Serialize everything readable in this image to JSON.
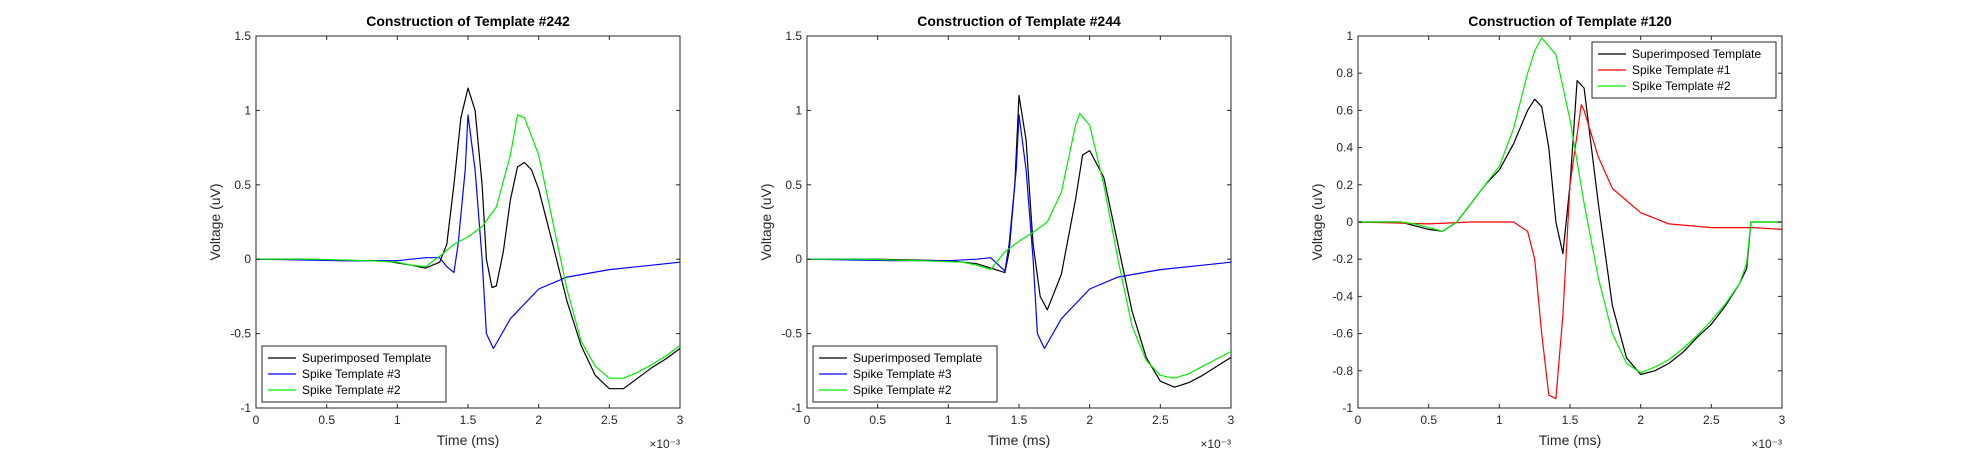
{
  "chart_data": [
    {
      "type": "line",
      "title": "Construction of Template #242",
      "xlabel": "Time (ms)",
      "ylabel": "Voltage (uV)",
      "x_exponent_label": "×10⁻³",
      "xlim": [
        0,
        0.003
      ],
      "ylim": [
        -1,
        1.5
      ],
      "xticks": [
        0,
        0.0005,
        0.001,
        0.0015,
        0.002,
        0.0025,
        0.003
      ],
      "xtick_labels": [
        "0",
        "0.5",
        "1",
        "1.5",
        "2",
        "2.5",
        "3"
      ],
      "yticks": [
        -1,
        -0.5,
        0,
        0.5,
        1,
        1.5
      ],
      "ytick_labels": [
        "-1",
        "-0.5",
        "0",
        "0.5",
        "1",
        "1.5"
      ],
      "legend_position": "bottom-left",
      "series": [
        {
          "name": "Superimposed Template",
          "color": "#000000",
          "points": [
            [
              0,
              0
            ],
            [
              0.0003,
              0
            ],
            [
              0.0006,
              -0.01
            ],
            [
              0.0009,
              -0.01
            ],
            [
              0.0011,
              -0.04
            ],
            [
              0.0012,
              -0.06
            ],
            [
              0.0013,
              -0.02
            ],
            [
              0.00135,
              0.1
            ],
            [
              0.0014,
              0.5
            ],
            [
              0.00145,
              0.95
            ],
            [
              0.0015,
              1.15
            ],
            [
              0.00155,
              1.0
            ],
            [
              0.0016,
              0.5
            ],
            [
              0.00163,
              0
            ],
            [
              0.00167,
              -0.19
            ],
            [
              0.0017,
              -0.18
            ],
            [
              0.00175,
              0.05
            ],
            [
              0.0018,
              0.4
            ],
            [
              0.00185,
              0.62
            ],
            [
              0.0019,
              0.65
            ],
            [
              0.00195,
              0.6
            ],
            [
              0.002,
              0.47
            ],
            [
              0.0021,
              0.1
            ],
            [
              0.0022,
              -0.28
            ],
            [
              0.0023,
              -0.58
            ],
            [
              0.0024,
              -0.78
            ],
            [
              0.0025,
              -0.87
            ],
            [
              0.0026,
              -0.87
            ],
            [
              0.0027,
              -0.8
            ],
            [
              0.0028,
              -0.73
            ],
            [
              0.0029,
              -0.67
            ],
            [
              0.003,
              -0.6
            ]
          ]
        },
        {
          "name": "Spike Template #3",
          "color": "#0000ff",
          "points": [
            [
              0,
              0
            ],
            [
              0.0006,
              -0.01
            ],
            [
              0.001,
              -0.01
            ],
            [
              0.0012,
              0.01
            ],
            [
              0.0013,
              0.01
            ],
            [
              0.00135,
              -0.05
            ],
            [
              0.0014,
              -0.09
            ],
            [
              0.00143,
              0.1
            ],
            [
              0.00148,
              0.6
            ],
            [
              0.0015,
              0.97
            ],
            [
              0.00155,
              0.6
            ],
            [
              0.0016,
              0
            ],
            [
              0.00163,
              -0.5
            ],
            [
              0.00168,
              -0.6
            ],
            [
              0.0018,
              -0.4
            ],
            [
              0.002,
              -0.2
            ],
            [
              0.0022,
              -0.12
            ],
            [
              0.0025,
              -0.07
            ],
            [
              0.0028,
              -0.04
            ],
            [
              0.003,
              -0.02
            ]
          ]
        },
        {
          "name": "Spike Template #2",
          "color": "#00ee00",
          "points": [
            [
              0,
              0
            ],
            [
              0.0004,
              0
            ],
            [
              0.0008,
              -0.01
            ],
            [
              0.001,
              -0.02
            ],
            [
              0.0011,
              -0.04
            ],
            [
              0.0012,
              -0.05
            ],
            [
              0.0013,
              0.02
            ],
            [
              0.0014,
              0.1
            ],
            [
              0.0015,
              0.15
            ],
            [
              0.0016,
              0.22
            ],
            [
              0.0017,
              0.35
            ],
            [
              0.0018,
              0.7
            ],
            [
              0.00185,
              0.97
            ],
            [
              0.0019,
              0.95
            ],
            [
              0.002,
              0.7
            ],
            [
              0.0021,
              0.25
            ],
            [
              0.0022,
              -0.2
            ],
            [
              0.0023,
              -0.55
            ],
            [
              0.0024,
              -0.72
            ],
            [
              0.0025,
              -0.8
            ],
            [
              0.0026,
              -0.8
            ],
            [
              0.0027,
              -0.76
            ],
            [
              0.0028,
              -0.71
            ],
            [
              0.0029,
              -0.65
            ],
            [
              0.003,
              -0.58
            ]
          ]
        }
      ]
    },
    {
      "type": "line",
      "title": "Construction of Template #244",
      "xlabel": "Time (ms)",
      "ylabel": "Voltage (uV)",
      "x_exponent_label": "×10⁻³",
      "xlim": [
        0,
        0.003
      ],
      "ylim": [
        -1,
        1.5
      ],
      "xticks": [
        0,
        0.0005,
        0.001,
        0.0015,
        0.002,
        0.0025,
        0.003
      ],
      "xtick_labels": [
        "0",
        "0.5",
        "1",
        "1.5",
        "2",
        "2.5",
        "3"
      ],
      "yticks": [
        -1,
        -0.5,
        0,
        0.5,
        1,
        1.5
      ],
      "ytick_labels": [
        "-1",
        "-0.5",
        "0",
        "0.5",
        "1",
        "1.5"
      ],
      "legend_position": "bottom-left",
      "series": [
        {
          "name": "Superimposed Template",
          "color": "#000000",
          "points": [
            [
              0,
              0
            ],
            [
              0.0005,
              0
            ],
            [
              0.001,
              -0.01
            ],
            [
              0.0012,
              -0.03
            ],
            [
              0.0013,
              -0.06
            ],
            [
              0.0014,
              -0.09
            ],
            [
              0.00143,
              0.05
            ],
            [
              0.00147,
              0.5
            ],
            [
              0.0015,
              1.1
            ],
            [
              0.00155,
              0.8
            ],
            [
              0.0016,
              0.1
            ],
            [
              0.00165,
              -0.25
            ],
            [
              0.0017,
              -0.34
            ],
            [
              0.0018,
              -0.1
            ],
            [
              0.0019,
              0.4
            ],
            [
              0.00195,
              0.7
            ],
            [
              0.002,
              0.73
            ],
            [
              0.0021,
              0.55
            ],
            [
              0.0022,
              0.1
            ],
            [
              0.0023,
              -0.35
            ],
            [
              0.0024,
              -0.66
            ],
            [
              0.0025,
              -0.82
            ],
            [
              0.0026,
              -0.86
            ],
            [
              0.0027,
              -0.83
            ],
            [
              0.0028,
              -0.78
            ],
            [
              0.0029,
              -0.72
            ],
            [
              0.003,
              -0.66
            ]
          ]
        },
        {
          "name": "Spike Template #3",
          "color": "#0000ff",
          "points": [
            [
              0,
              0
            ],
            [
              0.0006,
              -0.01
            ],
            [
              0.001,
              -0.01
            ],
            [
              0.0012,
              0
            ],
            [
              0.0013,
              0.01
            ],
            [
              0.0014,
              -0.08
            ],
            [
              0.00143,
              0.1
            ],
            [
              0.00148,
              0.6
            ],
            [
              0.0015,
              0.97
            ],
            [
              0.00155,
              0.6
            ],
            [
              0.0016,
              0
            ],
            [
              0.00163,
              -0.5
            ],
            [
              0.00168,
              -0.6
            ],
            [
              0.0018,
              -0.4
            ],
            [
              0.002,
              -0.2
            ],
            [
              0.0022,
              -0.12
            ],
            [
              0.0025,
              -0.07
            ],
            [
              0.0028,
              -0.04
            ],
            [
              0.003,
              -0.02
            ]
          ]
        },
        {
          "name": "Spike Template #2",
          "color": "#00ee00",
          "points": [
            [
              0,
              0
            ],
            [
              0.0004,
              0
            ],
            [
              0.0008,
              -0.01
            ],
            [
              0.0011,
              -0.02
            ],
            [
              0.0012,
              -0.04
            ],
            [
              0.0013,
              -0.07
            ],
            [
              0.0014,
              0.05
            ],
            [
              0.0015,
              0.12
            ],
            [
              0.0016,
              0.18
            ],
            [
              0.0017,
              0.25
            ],
            [
              0.0018,
              0.45
            ],
            [
              0.0019,
              0.9
            ],
            [
              0.00193,
              0.98
            ],
            [
              0.002,
              0.9
            ],
            [
              0.0021,
              0.5
            ],
            [
              0.0022,
              0
            ],
            [
              0.0023,
              -0.45
            ],
            [
              0.0024,
              -0.68
            ],
            [
              0.0025,
              -0.78
            ],
            [
              0.0026,
              -0.8
            ],
            [
              0.0027,
              -0.77
            ],
            [
              0.0028,
              -0.72
            ],
            [
              0.0029,
              -0.67
            ],
            [
              0.003,
              -0.62
            ]
          ]
        }
      ]
    },
    {
      "type": "line",
      "title": "Construction of Template #120",
      "xlabel": "Time (ms)",
      "ylabel": "Voltage (uV)",
      "x_exponent_label": "×10⁻³",
      "xlim": [
        0,
        0.003
      ],
      "ylim": [
        -1,
        1
      ],
      "xticks": [
        0,
        0.0005,
        0.001,
        0.0015,
        0.002,
        0.0025,
        0.003
      ],
      "xtick_labels": [
        "0",
        "0.5",
        "1",
        "1.5",
        "2",
        "2.5",
        "3"
      ],
      "yticks": [
        -1,
        -0.8,
        -0.6,
        -0.4,
        -0.2,
        0,
        0.2,
        0.4,
        0.6,
        0.8,
        1
      ],
      "ytick_labels": [
        "-1",
        "-0.8",
        "-0.6",
        "-0.4",
        "-0.2",
        "0",
        "0.2",
        "0.4",
        "0.6",
        "0.8",
        "1"
      ],
      "legend_position": "top-right",
      "series": [
        {
          "name": "Superimposed Template",
          "color": "#000000",
          "points": [
            [
              0,
              0
            ],
            [
              0.0003,
              0
            ],
            [
              0.0004,
              -0.02
            ],
            [
              0.0005,
              -0.04
            ],
            [
              0.0006,
              -0.05
            ],
            [
              0.0007,
              0
            ],
            [
              0.0008,
              0.1
            ],
            [
              0.0009,
              0.2
            ],
            [
              0.001,
              0.28
            ],
            [
              0.0011,
              0.42
            ],
            [
              0.0012,
              0.6
            ],
            [
              0.00125,
              0.66
            ],
            [
              0.0013,
              0.62
            ],
            [
              0.00135,
              0.4
            ],
            [
              0.0014,
              0
            ],
            [
              0.00145,
              -0.17
            ],
            [
              0.0015,
              0.2
            ],
            [
              0.00155,
              0.76
            ],
            [
              0.0016,
              0.72
            ],
            [
              0.0017,
              0.1
            ],
            [
              0.0018,
              -0.45
            ],
            [
              0.0019,
              -0.73
            ],
            [
              0.002,
              -0.82
            ],
            [
              0.0021,
              -0.8
            ],
            [
              0.0022,
              -0.76
            ],
            [
              0.0023,
              -0.7
            ],
            [
              0.0024,
              -0.62
            ],
            [
              0.0025,
              -0.55
            ],
            [
              0.0026,
              -0.45
            ],
            [
              0.0027,
              -0.33
            ],
            [
              0.00275,
              -0.25
            ],
            [
              0.00278,
              0
            ],
            [
              0.003,
              0
            ]
          ]
        },
        {
          "name": "Spike Template #1",
          "color": "#ff0000",
          "points": [
            [
              0,
              0
            ],
            [
              0.0005,
              -0.01
            ],
            [
              0.0008,
              0
            ],
            [
              0.001,
              0
            ],
            [
              0.0011,
              0
            ],
            [
              0.0012,
              -0.05
            ],
            [
              0.00125,
              -0.2
            ],
            [
              0.0013,
              -0.6
            ],
            [
              0.00135,
              -0.93
            ],
            [
              0.0014,
              -0.95
            ],
            [
              0.00145,
              -0.5
            ],
            [
              0.0015,
              0.2
            ],
            [
              0.00158,
              0.63
            ],
            [
              0.0016,
              0.6
            ],
            [
              0.0017,
              0.35
            ],
            [
              0.0018,
              0.18
            ],
            [
              0.002,
              0.05
            ],
            [
              0.0022,
              -0.01
            ],
            [
              0.0025,
              -0.03
            ],
            [
              0.0028,
              -0.03
            ],
            [
              0.003,
              -0.04
            ]
          ]
        },
        {
          "name": "Spike Template #2",
          "color": "#00ee00",
          "points": [
            [
              0,
              0
            ],
            [
              0.0003,
              0
            ],
            [
              0.0004,
              -0.01
            ],
            [
              0.0005,
              -0.03
            ],
            [
              0.0006,
              -0.05
            ],
            [
              0.0007,
              0
            ],
            [
              0.0008,
              0.1
            ],
            [
              0.0009,
              0.2
            ],
            [
              0.001,
              0.3
            ],
            [
              0.0011,
              0.5
            ],
            [
              0.0012,
              0.8
            ],
            [
              0.00125,
              0.92
            ],
            [
              0.0013,
              0.99
            ],
            [
              0.0014,
              0.9
            ],
            [
              0.0015,
              0.55
            ],
            [
              0.0016,
              0.1
            ],
            [
              0.0017,
              -0.3
            ],
            [
              0.0018,
              -0.6
            ],
            [
              0.0019,
              -0.76
            ],
            [
              0.002,
              -0.81
            ],
            [
              0.0021,
              -0.78
            ],
            [
              0.0022,
              -0.74
            ],
            [
              0.0023,
              -0.68
            ],
            [
              0.0024,
              -0.61
            ],
            [
              0.0025,
              -0.53
            ],
            [
              0.0026,
              -0.44
            ],
            [
              0.0027,
              -0.33
            ],
            [
              0.00275,
              -0.22
            ],
            [
              0.00278,
              0
            ],
            [
              0.003,
              0
            ]
          ]
        }
      ]
    }
  ]
}
